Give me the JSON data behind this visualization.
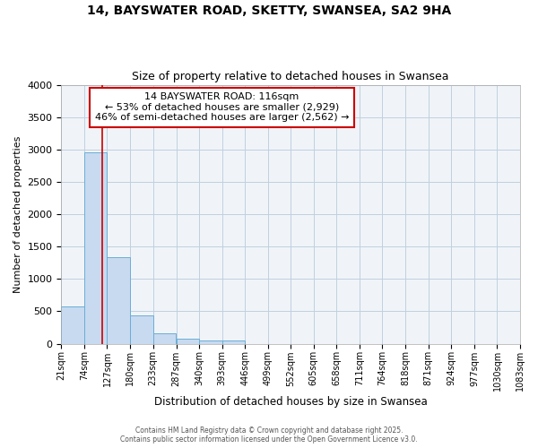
{
  "title1": "14, BAYSWATER ROAD, SKETTY, SWANSEA, SA2 9HA",
  "title2": "Size of property relative to detached houses in Swansea",
  "xlabel": "Distribution of detached houses by size in Swansea",
  "ylabel": "Number of detached properties",
  "bin_edges": [
    21,
    74,
    127,
    180,
    233,
    287,
    340,
    393,
    446,
    499,
    552,
    605,
    658,
    711,
    764,
    818,
    871,
    924,
    977,
    1030,
    1083
  ],
  "bar_heights": [
    580,
    2960,
    1340,
    430,
    165,
    70,
    45,
    45,
    0,
    0,
    0,
    0,
    0,
    0,
    0,
    0,
    0,
    0,
    0,
    0
  ],
  "bar_color": "#c8daf0",
  "bar_edge_color": "#6baed6",
  "grid_color": "#c0cfe0",
  "background_color": "#f0f4f8",
  "fig_background": "#ffffff",
  "red_line_x": 116,
  "annotation_title": "14 BAYSWATER ROAD: 116sqm",
  "annotation_line1": "← 53% of detached houses are smaller (2,929)",
  "annotation_line2": "46% of semi-detached houses are larger (2,562) →",
  "annotation_box_color": "#ffffff",
  "annotation_box_edge": "#cc0000",
  "red_line_color": "#cc0000",
  "ylim": [
    0,
    4000
  ],
  "yticks": [
    0,
    500,
    1000,
    1500,
    2000,
    2500,
    3000,
    3500,
    4000
  ],
  "tick_labels": [
    "21sqm",
    "74sqm",
    "127sqm",
    "180sqm",
    "233sqm",
    "287sqm",
    "340sqm",
    "393sqm",
    "446sqm",
    "499sqm",
    "552sqm",
    "605sqm",
    "658sqm",
    "711sqm",
    "764sqm",
    "818sqm",
    "871sqm",
    "924sqm",
    "977sqm",
    "1030sqm",
    "1083sqm"
  ],
  "footer1": "Contains HM Land Registry data © Crown copyright and database right 2025.",
  "footer2": "Contains public sector information licensed under the Open Government Licence v3.0."
}
